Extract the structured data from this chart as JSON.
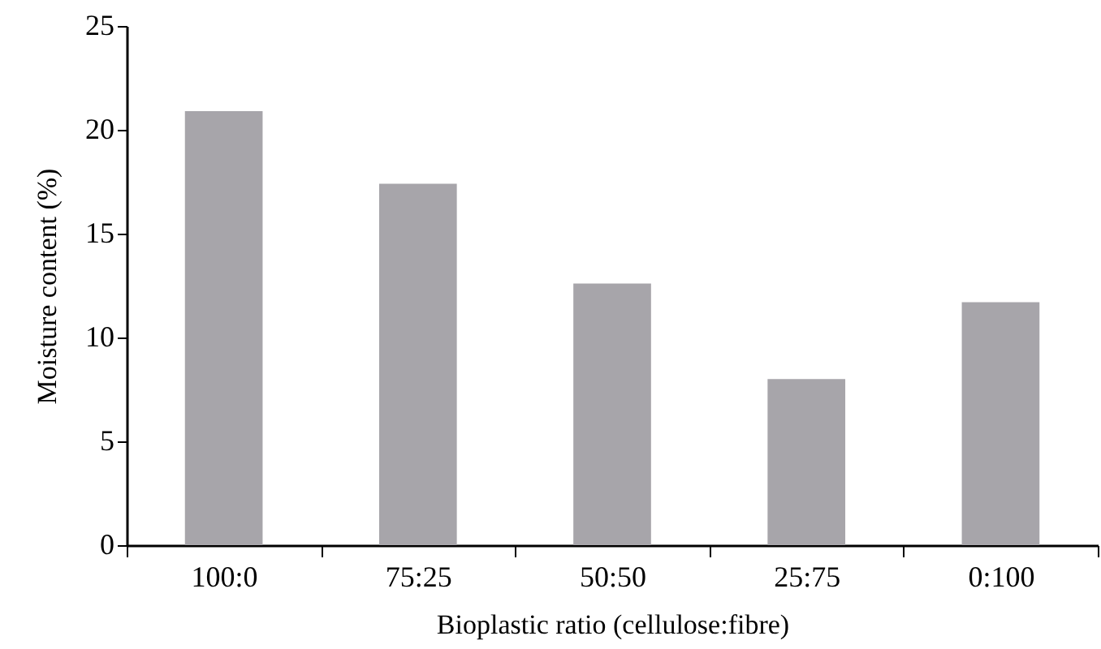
{
  "chart_data": {
    "type": "bar",
    "xlabel": "Bioplastic ratio (cellulose:fibre)",
    "ylabel": "Moisture content (%)",
    "categories": [
      "100:0",
      "75:25",
      "50:50",
      "25:75",
      "0:100"
    ],
    "values": [
      20.9,
      17.4,
      12.6,
      8.0,
      11.7
    ],
    "color": "#a7a5aa",
    "ylim": [
      0,
      25
    ],
    "yticks": [
      0,
      5,
      10,
      15,
      20,
      25
    ],
    "grid": false
  }
}
